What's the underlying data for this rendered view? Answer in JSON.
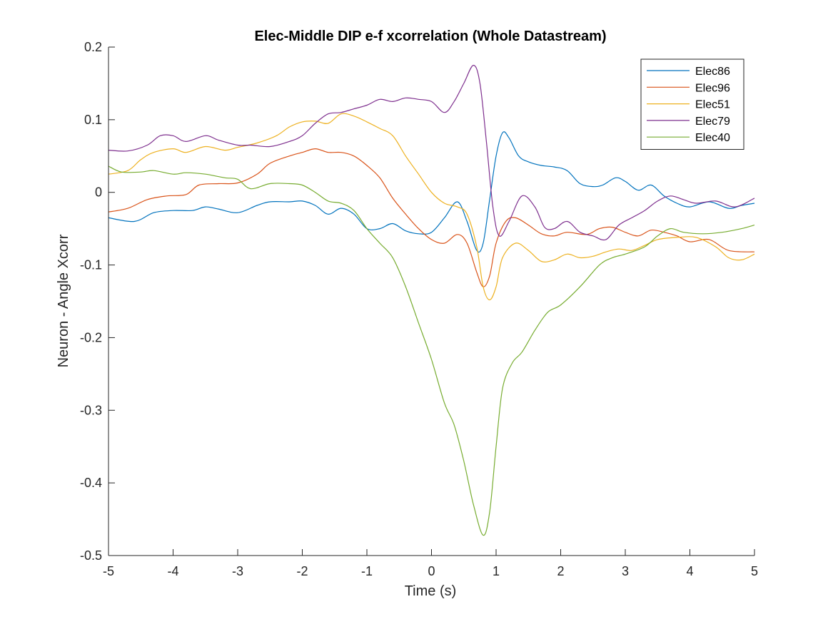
{
  "chart_data": {
    "type": "line",
    "title": "Elec-Middle DIP e-f xcorrelation (Whole Datastream)",
    "xlabel": "Time (s)",
    "ylabel": "Neuron - Angle Xcorr",
    "xlim": [
      -5,
      5
    ],
    "ylim": [
      -0.5,
      0.2
    ],
    "xticks": [
      -5,
      -4,
      -3,
      -2,
      -1,
      0,
      1,
      2,
      3,
      4,
      5
    ],
    "yticks": [
      -0.5,
      -0.4,
      -0.3,
      -0.2,
      -0.1,
      0,
      0.1,
      0.2
    ],
    "xtick_labels": [
      "-5",
      "-4",
      "-3",
      "-2",
      "-1",
      "0",
      "1",
      "2",
      "3",
      "4",
      "5"
    ],
    "ytick_labels": [
      "-0.5",
      "-0.4",
      "-0.3",
      "-0.2",
      "-0.1",
      "0",
      "0.1",
      "0.2"
    ],
    "grid": false,
    "legend_position": "top-right",
    "series": [
      {
        "name": "Elec86",
        "color": "#0072BD",
        "points": [
          [
            -5,
            -0.035
          ],
          [
            -4.6,
            -0.04
          ],
          [
            -4.3,
            -0.028
          ],
          [
            -4,
            -0.025
          ],
          [
            -3.7,
            -0.025
          ],
          [
            -3.5,
            -0.02
          ],
          [
            -3.3,
            -0.023
          ],
          [
            -3,
            -0.028
          ],
          [
            -2.7,
            -0.018
          ],
          [
            -2.5,
            -0.013
          ],
          [
            -2.2,
            -0.013
          ],
          [
            -2,
            -0.012
          ],
          [
            -1.8,
            -0.018
          ],
          [
            -1.6,
            -0.03
          ],
          [
            -1.4,
            -0.022
          ],
          [
            -1.2,
            -0.03
          ],
          [
            -1,
            -0.05
          ],
          [
            -0.8,
            -0.05
          ],
          [
            -0.6,
            -0.043
          ],
          [
            -0.4,
            -0.053
          ],
          [
            -0.2,
            -0.057
          ],
          [
            0,
            -0.055
          ],
          [
            0.2,
            -0.035
          ],
          [
            0.4,
            -0.013
          ],
          [
            0.55,
            -0.04
          ],
          [
            0.7,
            -0.08
          ],
          [
            0.8,
            -0.07
          ],
          [
            0.9,
            -0.01
          ],
          [
            1,
            0.05
          ],
          [
            1.1,
            0.082
          ],
          [
            1.2,
            0.075
          ],
          [
            1.35,
            0.05
          ],
          [
            1.5,
            0.042
          ],
          [
            1.7,
            0.037
          ],
          [
            1.9,
            0.035
          ],
          [
            2.1,
            0.03
          ],
          [
            2.3,
            0.012
          ],
          [
            2.5,
            0.008
          ],
          [
            2.65,
            0.01
          ],
          [
            2.85,
            0.02
          ],
          [
            3,
            0.015
          ],
          [
            3.2,
            0.003
          ],
          [
            3.4,
            0.01
          ],
          [
            3.6,
            -0.005
          ],
          [
            3.8,
            -0.015
          ],
          [
            4,
            -0.02
          ],
          [
            4.3,
            -0.013
          ],
          [
            4.6,
            -0.022
          ],
          [
            4.8,
            -0.018
          ],
          [
            5,
            -0.015
          ]
        ]
      },
      {
        "name": "Elec96",
        "color": "#D95319",
        "points": [
          [
            -5,
            -0.027
          ],
          [
            -4.7,
            -0.022
          ],
          [
            -4.4,
            -0.01
          ],
          [
            -4.1,
            -0.005
          ],
          [
            -3.8,
            -0.003
          ],
          [
            -3.6,
            0.01
          ],
          [
            -3.3,
            0.012
          ],
          [
            -3,
            0.013
          ],
          [
            -2.7,
            0.025
          ],
          [
            -2.5,
            0.04
          ],
          [
            -2.2,
            0.05
          ],
          [
            -2,
            0.055
          ],
          [
            -1.8,
            0.06
          ],
          [
            -1.6,
            0.055
          ],
          [
            -1.4,
            0.055
          ],
          [
            -1.2,
            0.05
          ],
          [
            -1,
            0.037
          ],
          [
            -0.8,
            0.02
          ],
          [
            -0.6,
            -0.008
          ],
          [
            -0.4,
            -0.03
          ],
          [
            -0.2,
            -0.05
          ],
          [
            0,
            -0.065
          ],
          [
            0.2,
            -0.07
          ],
          [
            0.4,
            -0.058
          ],
          [
            0.55,
            -0.07
          ],
          [
            0.7,
            -0.11
          ],
          [
            0.8,
            -0.13
          ],
          [
            0.9,
            -0.115
          ],
          [
            1,
            -0.07
          ],
          [
            1.15,
            -0.04
          ],
          [
            1.3,
            -0.035
          ],
          [
            1.5,
            -0.045
          ],
          [
            1.7,
            -0.057
          ],
          [
            1.9,
            -0.06
          ],
          [
            2.1,
            -0.055
          ],
          [
            2.4,
            -0.058
          ],
          [
            2.6,
            -0.05
          ],
          [
            2.8,
            -0.048
          ],
          [
            3,
            -0.055
          ],
          [
            3.2,
            -0.06
          ],
          [
            3.4,
            -0.052
          ],
          [
            3.6,
            -0.055
          ],
          [
            3.8,
            -0.06
          ],
          [
            4,
            -0.068
          ],
          [
            4.3,
            -0.065
          ],
          [
            4.6,
            -0.08
          ],
          [
            5,
            -0.082
          ]
        ]
      },
      {
        "name": "Elec51",
        "color": "#EDB120",
        "points": [
          [
            -5,
            0.025
          ],
          [
            -4.7,
            0.03
          ],
          [
            -4.5,
            0.045
          ],
          [
            -4.3,
            0.055
          ],
          [
            -4,
            0.06
          ],
          [
            -3.8,
            0.055
          ],
          [
            -3.5,
            0.063
          ],
          [
            -3.2,
            0.058
          ],
          [
            -3,
            0.062
          ],
          [
            -2.7,
            0.068
          ],
          [
            -2.4,
            0.078
          ],
          [
            -2.2,
            0.09
          ],
          [
            -2,
            0.097
          ],
          [
            -1.8,
            0.098
          ],
          [
            -1.6,
            0.095
          ],
          [
            -1.4,
            0.108
          ],
          [
            -1.2,
            0.105
          ],
          [
            -1,
            0.097
          ],
          [
            -0.8,
            0.088
          ],
          [
            -0.6,
            0.078
          ],
          [
            -0.4,
            0.05
          ],
          [
            -0.2,
            0.025
          ],
          [
            0,
            0.0
          ],
          [
            0.2,
            -0.015
          ],
          [
            0.4,
            -0.02
          ],
          [
            0.55,
            -0.03
          ],
          [
            0.7,
            -0.075
          ],
          [
            0.8,
            -0.13
          ],
          [
            0.9,
            -0.148
          ],
          [
            1,
            -0.13
          ],
          [
            1.1,
            -0.09
          ],
          [
            1.3,
            -0.07
          ],
          [
            1.5,
            -0.08
          ],
          [
            1.7,
            -0.095
          ],
          [
            1.9,
            -0.093
          ],
          [
            2.1,
            -0.085
          ],
          [
            2.3,
            -0.09
          ],
          [
            2.5,
            -0.088
          ],
          [
            2.7,
            -0.082
          ],
          [
            2.9,
            -0.078
          ],
          [
            3.1,
            -0.08
          ],
          [
            3.3,
            -0.073
          ],
          [
            3.5,
            -0.065
          ],
          [
            3.8,
            -0.062
          ],
          [
            4.1,
            -0.062
          ],
          [
            4.4,
            -0.075
          ],
          [
            4.6,
            -0.09
          ],
          [
            4.8,
            -0.093
          ],
          [
            5,
            -0.085
          ]
        ]
      },
      {
        "name": "Elec79",
        "color": "#7E2F8E",
        "points": [
          [
            -5,
            0.058
          ],
          [
            -4.7,
            0.057
          ],
          [
            -4.4,
            0.065
          ],
          [
            -4.2,
            0.078
          ],
          [
            -4,
            0.078
          ],
          [
            -3.8,
            0.07
          ],
          [
            -3.5,
            0.078
          ],
          [
            -3.3,
            0.072
          ],
          [
            -3,
            0.065
          ],
          [
            -2.8,
            0.065
          ],
          [
            -2.5,
            0.063
          ],
          [
            -2.2,
            0.07
          ],
          [
            -2,
            0.078
          ],
          [
            -1.8,
            0.095
          ],
          [
            -1.6,
            0.108
          ],
          [
            -1.4,
            0.11
          ],
          [
            -1.2,
            0.115
          ],
          [
            -1,
            0.12
          ],
          [
            -0.8,
            0.128
          ],
          [
            -0.6,
            0.125
          ],
          [
            -0.4,
            0.13
          ],
          [
            -0.2,
            0.128
          ],
          [
            0,
            0.125
          ],
          [
            0.2,
            0.11
          ],
          [
            0.35,
            0.125
          ],
          [
            0.5,
            0.15
          ],
          [
            0.65,
            0.175
          ],
          [
            0.75,
            0.15
          ],
          [
            0.85,
            0.07
          ],
          [
            0.95,
            -0.02
          ],
          [
            1.05,
            -0.06
          ],
          [
            1.2,
            -0.04
          ],
          [
            1.4,
            -0.005
          ],
          [
            1.6,
            -0.02
          ],
          [
            1.75,
            -0.048
          ],
          [
            1.9,
            -0.05
          ],
          [
            2.1,
            -0.04
          ],
          [
            2.3,
            -0.055
          ],
          [
            2.5,
            -0.06
          ],
          [
            2.7,
            -0.065
          ],
          [
            2.9,
            -0.045
          ],
          [
            3.1,
            -0.035
          ],
          [
            3.3,
            -0.025
          ],
          [
            3.5,
            -0.012
          ],
          [
            3.7,
            -0.005
          ],
          [
            3.9,
            -0.01
          ],
          [
            4.1,
            -0.015
          ],
          [
            4.4,
            -0.012
          ],
          [
            4.7,
            -0.02
          ],
          [
            5,
            -0.008
          ]
        ]
      },
      {
        "name": "Elec40",
        "color": "#77AC30",
        "points": [
          [
            -5,
            0.036
          ],
          [
            -4.8,
            0.028
          ],
          [
            -4.5,
            0.028
          ],
          [
            -4.3,
            0.03
          ],
          [
            -4,
            0.025
          ],
          [
            -3.8,
            0.027
          ],
          [
            -3.5,
            0.025
          ],
          [
            -3.2,
            0.02
          ],
          [
            -3,
            0.018
          ],
          [
            -2.8,
            0.005
          ],
          [
            -2.5,
            0.012
          ],
          [
            -2.2,
            0.012
          ],
          [
            -2,
            0.01
          ],
          [
            -1.8,
            0.0
          ],
          [
            -1.6,
            -0.012
          ],
          [
            -1.4,
            -0.015
          ],
          [
            -1.2,
            -0.025
          ],
          [
            -1,
            -0.05
          ],
          [
            -0.8,
            -0.07
          ],
          [
            -0.6,
            -0.09
          ],
          [
            -0.4,
            -0.13
          ],
          [
            -0.2,
            -0.18
          ],
          [
            0,
            -0.23
          ],
          [
            0.2,
            -0.29
          ],
          [
            0.35,
            -0.32
          ],
          [
            0.5,
            -0.37
          ],
          [
            0.65,
            -0.43
          ],
          [
            0.8,
            -0.472
          ],
          [
            0.9,
            -0.44
          ],
          [
            1,
            -0.35
          ],
          [
            1.1,
            -0.27
          ],
          [
            1.25,
            -0.235
          ],
          [
            1.4,
            -0.22
          ],
          [
            1.6,
            -0.19
          ],
          [
            1.8,
            -0.165
          ],
          [
            2,
            -0.155
          ],
          [
            2.3,
            -0.13
          ],
          [
            2.6,
            -0.1
          ],
          [
            2.8,
            -0.09
          ],
          [
            3,
            -0.085
          ],
          [
            3.3,
            -0.075
          ],
          [
            3.5,
            -0.06
          ],
          [
            3.7,
            -0.05
          ],
          [
            3.9,
            -0.055
          ],
          [
            4.2,
            -0.057
          ],
          [
            4.5,
            -0.055
          ],
          [
            4.8,
            -0.05
          ],
          [
            5,
            -0.045
          ]
        ]
      }
    ]
  }
}
